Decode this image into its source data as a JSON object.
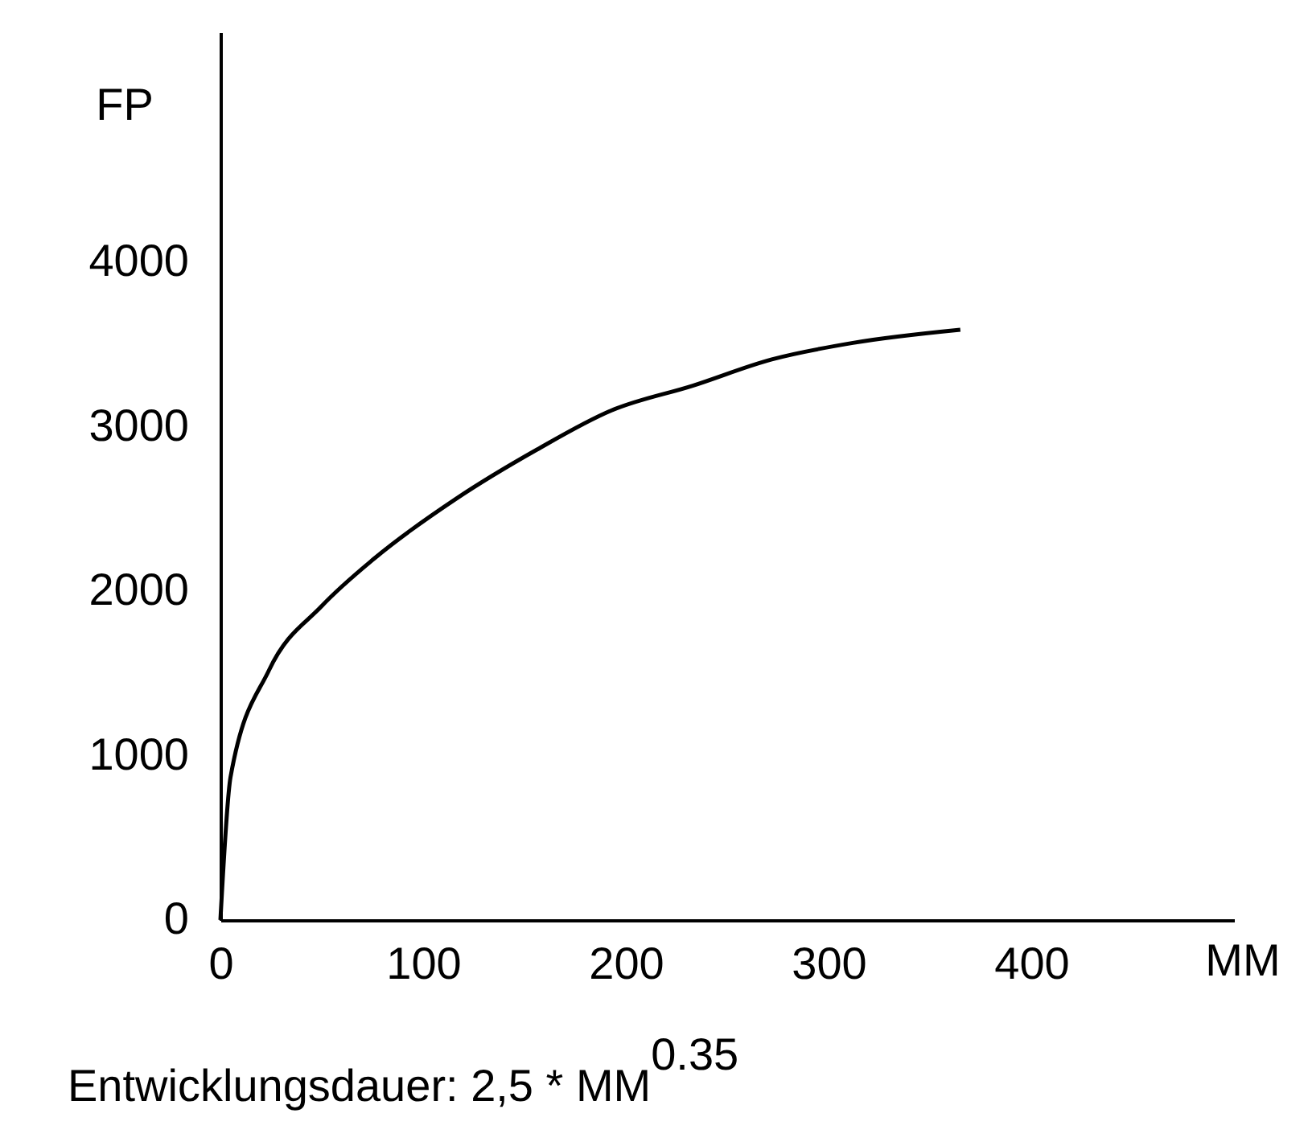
{
  "chart_data": {
    "type": "line",
    "xlabel": "MM",
    "ylabel": "FP",
    "annotations": [
      "Entwicklungsdauer: 2,5 * MM$^{0.35}$"
    ],
    "x": [
      0,
      5,
      24,
      50,
      76,
      116,
      156,
      193,
      233,
      272,
      312,
      365
    ],
    "series": [
      {
        "color": "#000000",
        "values": [
          0,
          870,
          1520,
          1910,
          2200,
          2560,
          2860,
          3100,
          3250,
          3410,
          3510,
          3590
        ]
      }
    ],
    "xlim": [
      0,
      500
    ],
    "ylim": [
      0,
      5400
    ],
    "xticks": [
      0,
      100,
      200,
      300,
      400
    ],
    "yticks": [
      0,
      1000,
      2000,
      3000,
      4000
    ],
    "grid": false,
    "marker": "none",
    "line_style": "solid"
  }
}
